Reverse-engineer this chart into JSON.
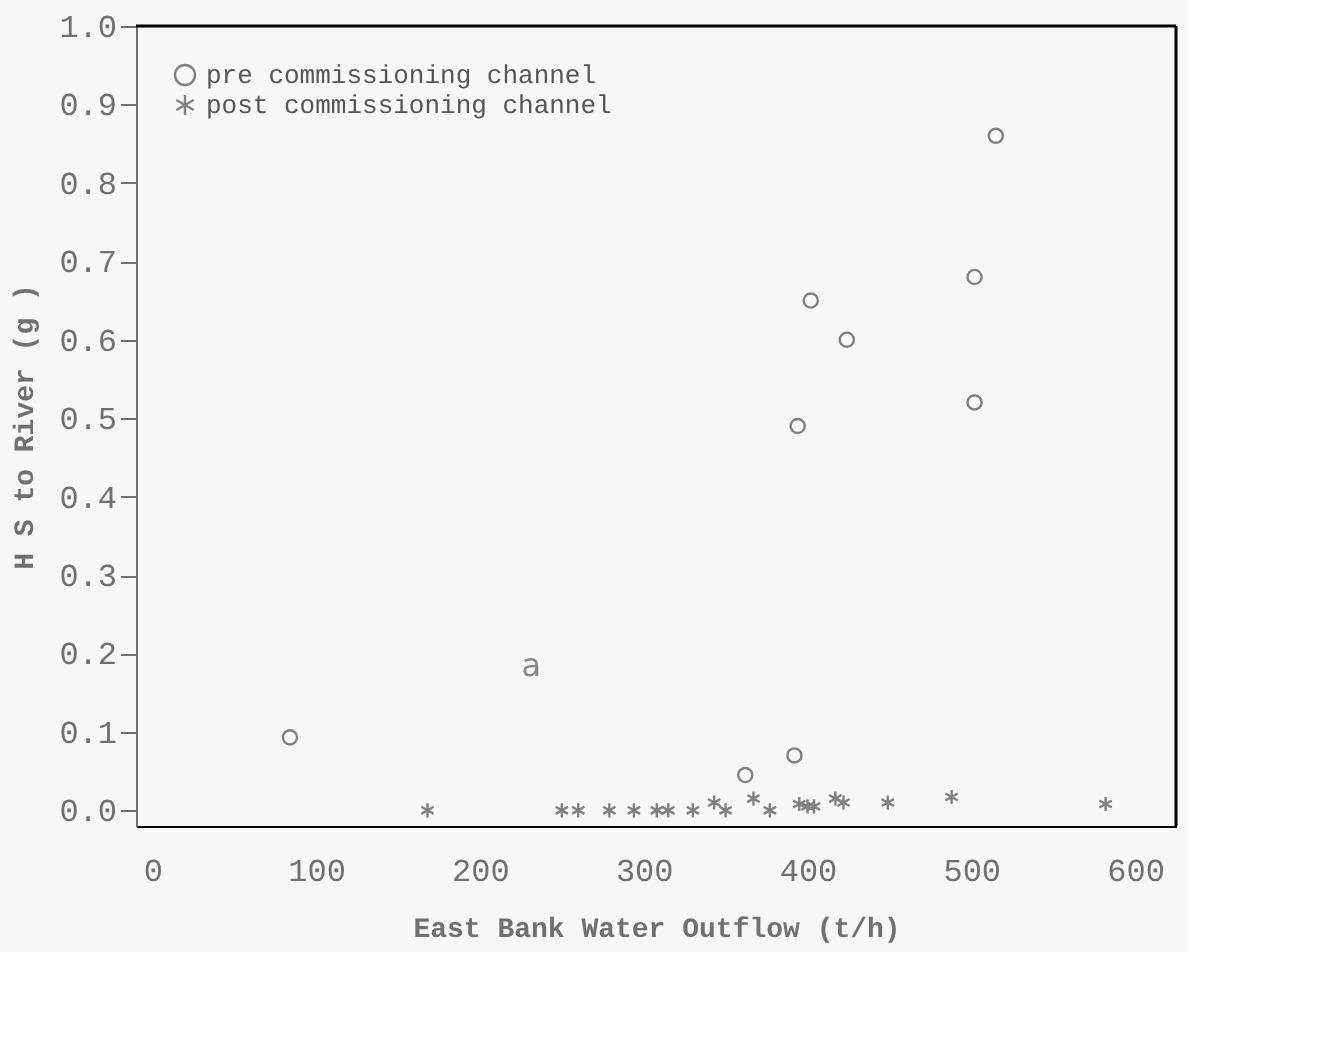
{
  "chart_data": {
    "type": "scatter",
    "xlabel": "East Bank Water Outflow (t/h)",
    "ylabel": "H S to River (g )",
    "xlim": [
      -10,
      625
    ],
    "xticks": [
      0,
      100,
      200,
      300,
      400,
      500,
      600
    ],
    "ylim": [
      -0.02,
      1.0
    ],
    "yticks": [
      {
        "value": 0,
        "label": "0.0"
      },
      0.1,
      0.2,
      0.3,
      0.4,
      0.5,
      0.6,
      0.7,
      0.8,
      0.9,
      {
        "value": 1,
        "label": "1.0"
      }
    ],
    "grid": false,
    "legend": "top left",
    "annotations": [
      "a"
    ],
    "series": [
      {
        "name": "pre commissioning channel",
        "color": "#808080",
        "marker": "circle",
        "x": [
          84,
          362,
          392,
          394,
          402,
          424,
          502,
          502,
          515
        ],
        "values": [
          0.093,
          0.045,
          0.07,
          0.49,
          0.65,
          0.6,
          0.52,
          0.68,
          0.86
        ]
      },
      {
        "name": "post commissioning channel",
        "color": "#808080",
        "marker": "cross",
        "x": [
          168,
          250,
          260,
          279,
          294,
          308,
          315,
          330,
          343,
          350,
          367,
          377,
          395,
          400,
          404,
          417,
          422,
          449,
          488,
          582
        ],
        "values": [
          0.0,
          0.0,
          0.0,
          0.0,
          0.0,
          0.0,
          0.0,
          0.0,
          0.01,
          0.0,
          0.015,
          0.0,
          0.008,
          0.005,
          0.005,
          0.015,
          0.01,
          0.01,
          0.017,
          0.008
        ]
      }
    ]
  }
}
